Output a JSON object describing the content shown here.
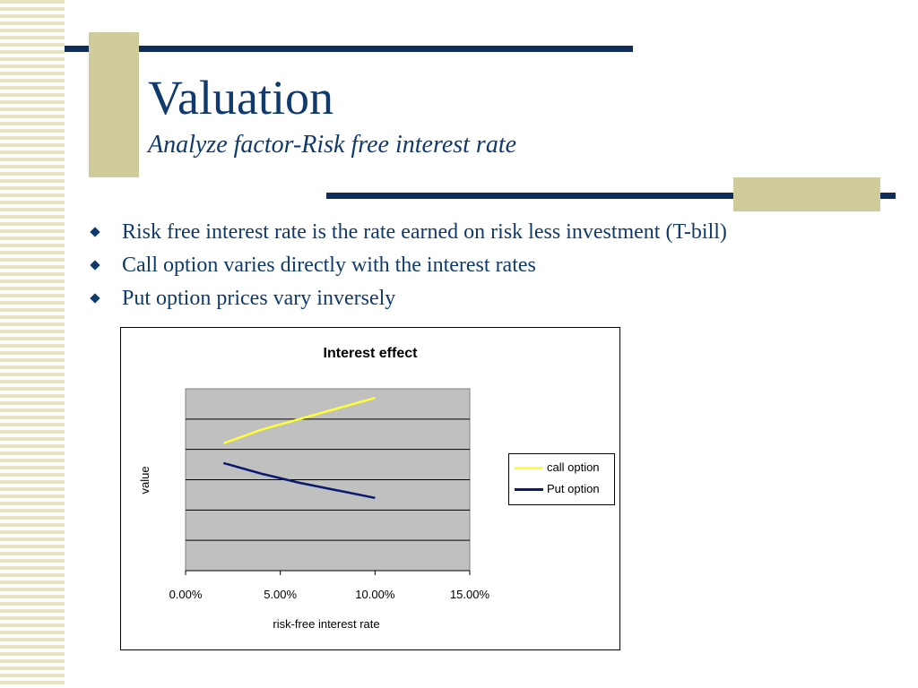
{
  "slide": {
    "title": "Valuation",
    "subtitle": "Analyze factor-Risk free interest rate",
    "bullets": [
      "Risk free interest rate is the rate earned on risk less investment (T-bill)",
      "Call option varies directly with the interest rates",
      "Put option prices vary inversely"
    ],
    "colors": {
      "text": "#103a6b",
      "bar": "#0f2f5a",
      "accent": "#cfcb9a"
    }
  },
  "chart_data": {
    "type": "line",
    "title": "Interest effect",
    "xlabel": "risk-free interest rate",
    "ylabel": "value",
    "x_ticks": [
      "0.00%",
      "5.00%",
      "10.00%",
      "15.00%"
    ],
    "xlim": [
      0,
      0.15
    ],
    "ylim": [
      0,
      6
    ],
    "grid": true,
    "plot_background": "#c0c0c0",
    "legend_position": "right",
    "series": [
      {
        "name": "call option",
        "color": "#ffff33",
        "x": [
          0.02,
          0.04,
          0.06,
          0.08,
          0.1
        ],
        "y": [
          4.2,
          4.65,
          5.0,
          5.35,
          5.7
        ]
      },
      {
        "name": "Put option",
        "color": "#0a1a6e",
        "x": [
          0.02,
          0.04,
          0.06,
          0.08,
          0.1
        ],
        "y": [
          3.55,
          3.2,
          2.9,
          2.65,
          2.4
        ]
      }
    ]
  }
}
